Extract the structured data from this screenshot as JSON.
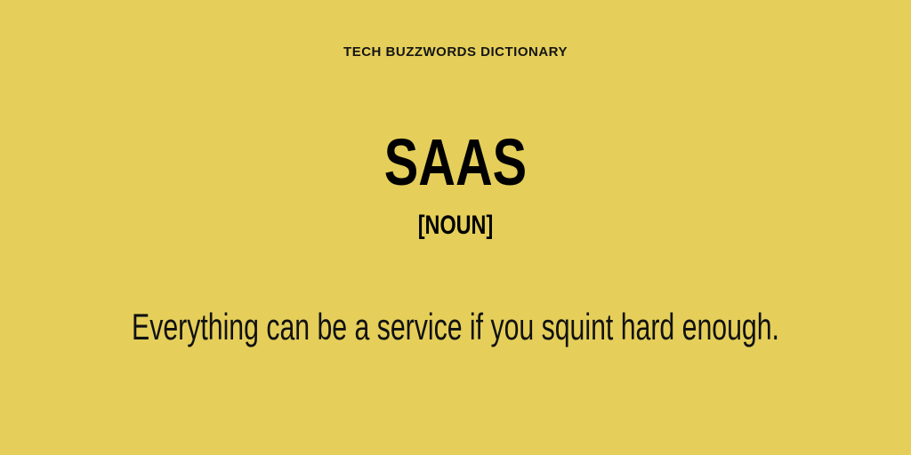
{
  "card": {
    "header": "TECH BUZZWORDS DICTIONARY",
    "term": "SAAS",
    "part_of_speech": "[NOUN]",
    "definition": "Everything can be a service if you squint hard enough."
  },
  "colors": {
    "background": "#e5cf5a",
    "text": "#111111"
  }
}
